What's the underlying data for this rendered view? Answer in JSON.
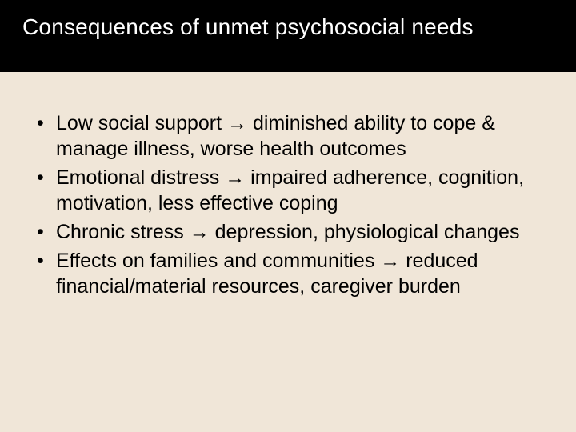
{
  "slide": {
    "title": "Consequences of unmet psychosocial needs",
    "bullets": [
      "Low social support → diminished ability to cope & manage illness, worse health outcomes",
      "Emotional distress → impaired adherence, cognition, motivation, less effective coping",
      "Chronic stress → depression, physiological changes",
      "Effects on families and communities → reduced financial/material resources, caregiver burden"
    ],
    "colors": {
      "header_bg": "#000000",
      "title_text": "#ffffff",
      "body_bg": "#f0e6d8",
      "body_text": "#000000"
    },
    "typography": {
      "title_fontsize": 28,
      "body_fontsize": 25,
      "font_family": "Arial"
    }
  }
}
